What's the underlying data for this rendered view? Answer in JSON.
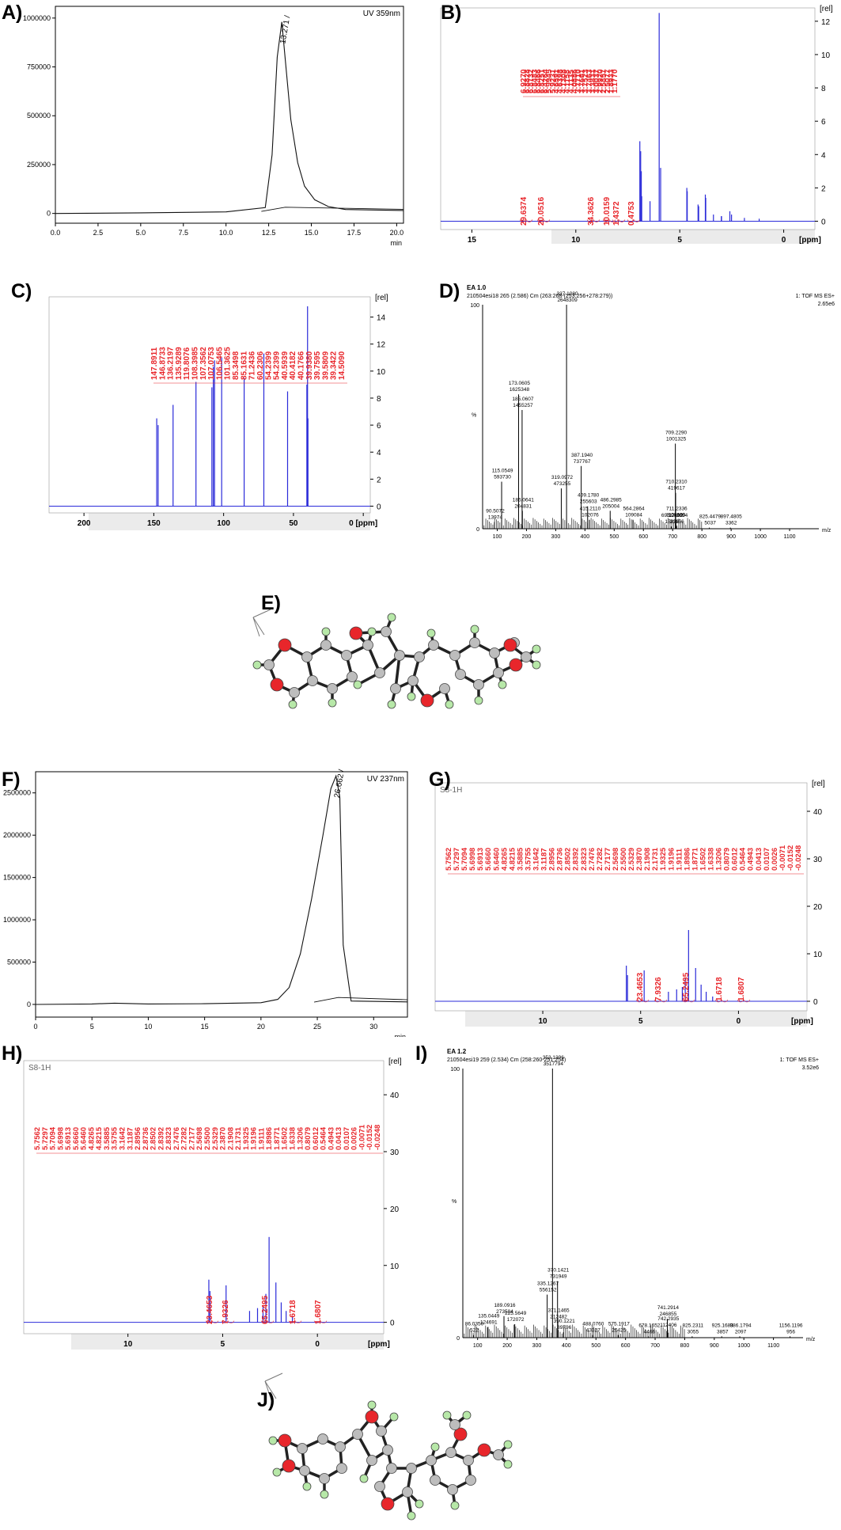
{
  "chart_data": [
    {
      "panel": "A)",
      "type": "line",
      "legend_text": "UV 359nm",
      "xlabel": "min",
      "xticks": [
        "0.0",
        "2.5",
        "5.0",
        "7.5",
        "10.0",
        "12.5",
        "15.0",
        "17.5",
        "20.0"
      ],
      "yticks": [
        "0",
        "250000",
        "500000",
        "750000",
        "1000000"
      ],
      "xlim": [
        0,
        20.4
      ],
      "ylim": [
        -50000,
        1060000
      ],
      "peak_label": "13.271",
      "series": [
        {
          "x": [
            0,
            5,
            10,
            12.3,
            12.7,
            13.0,
            13.27,
            13.5,
            13.8,
            14.2,
            14.6,
            15.2,
            16.0,
            17.0,
            20.4
          ],
          "y": [
            0,
            3000,
            8000,
            30000,
            300000,
            800000,
            980000,
            760000,
            480000,
            260000,
            140000,
            70000,
            35000,
            20000,
            15000
          ]
        }
      ]
    },
    {
      "panel": "B)",
      "type": "line",
      "xlabel": "[ppm]",
      "ylabel": "[rel]",
      "xticks": [
        "15",
        "10",
        "5",
        "0"
      ],
      "yticks": [
        "0",
        "2",
        "4",
        "6",
        "8",
        "10",
        "12"
      ],
      "xlim": [
        16.5,
        -1.5
      ],
      "ylim": [
        -0.5,
        12.8
      ],
      "peak_labels": [
        "6.9270",
        "6.8828",
        "6.8732",
        "6.8483",
        "6.8466",
        "6.8251",
        "6.4264",
        "5.9945",
        "5.9231",
        "4.6591",
        "4.6398",
        "4.1308",
        "4.1158",
        "4.1135",
        "4.0886",
        "3.7710",
        "3.7661",
        "3.7523",
        "3.7463",
        "3.3831",
        "3.0037",
        "2.9920",
        "2.5857",
        "2.5077",
        "1.8933",
        "1.1770"
      ],
      "integrals": [
        "29.6374",
        "20.0516",
        "34.3626",
        "10.0159",
        "1.4372",
        "0.4753"
      ],
      "series": [
        {
          "x": [
            6.92,
            6.88,
            6.85,
            6.83,
            6.43,
            5.99,
            5.92,
            4.66,
            4.64,
            4.12,
            4.09,
            3.77,
            3.75,
            3.38,
            3.0,
            2.99,
            2.59,
            2.51,
            1.89,
            1.18
          ],
          "y": [
            4.8,
            4.2,
            3.0,
            1.5,
            1.2,
            12.5,
            3.2,
            2.0,
            1.8,
            1.0,
            0.9,
            1.6,
            1.4,
            0.4,
            0.3,
            0.3,
            0.6,
            0.4,
            0.2,
            0.15
          ]
        }
      ]
    },
    {
      "panel": "C)",
      "type": "line",
      "xlabel": "[ppm]",
      "ylabel": "[rel]",
      "xticks": [
        "200",
        "150",
        "100",
        "50",
        "0 [ppm]"
      ],
      "yticks": [
        "0",
        "2",
        "4",
        "6",
        "8",
        "10",
        "12",
        "14"
      ],
      "xlim": [
        225,
        -5
      ],
      "ylim": [
        -0.5,
        15.5
      ],
      "peak_labels": [
        "147.8911",
        "146.8733",
        "136.2197",
        "135.9289",
        "119.8076",
        "108.3985",
        "107.3562",
        "107.0753",
        "106.5465",
        "101.3625",
        "85.3498",
        "85.1631",
        "71.2436",
        "60.2306",
        "54.2399",
        "54.2399",
        "40.5939",
        "40.4182",
        "40.1766",
        "39.9380",
        "39.7595",
        "39.5809",
        "39.3422",
        "14.5090"
      ],
      "series": [
        {
          "x": [
            147.9,
            146.9,
            136.2,
            119.8,
            108.4,
            107.4,
            106.5,
            101.4,
            85.3,
            71.2,
            54.2,
            40.4,
            39.9,
            39.6
          ],
          "y": [
            6.5,
            6.0,
            7.5,
            9.2,
            8.8,
            10.3,
            10.8,
            11.0,
            9.5,
            11.3,
            8.5,
            9.0,
            14.8,
            6.5
          ]
        }
      ]
    },
    {
      "panel": "D)",
      "type": "bar",
      "header_line1": "EA 1.0",
      "header_line2": "210504esi18 265 (2.586) Cm (263:268-(253:256+278:279))",
      "header_right1": "1: TOF MS ES+",
      "header_right2": "2.65e6",
      "ylabel": "%",
      "xlabel": "m/z",
      "xticks": [
        "100",
        "200",
        "300",
        "400",
        "500",
        "600",
        "700",
        "800",
        "900",
        "1000",
        "1100"
      ],
      "yticks": [
        "0",
        "100"
      ],
      "xlim": [
        50,
        1200
      ],
      "ylim": [
        0,
        100
      ],
      "peaks": [
        {
          "mz": 90.5072,
          "inten": 3,
          "label1": "90.5072",
          "label2": "13974"
        },
        {
          "mz": 115.0549,
          "inten": 21,
          "label1": "115.0549",
          "label2": "593730"
        },
        {
          "mz": 173.0605,
          "inten": 60,
          "label1": "173.0605",
          "label2": "1625348"
        },
        {
          "mz": 185.0607,
          "inten": 53,
          "label1": "185.0607",
          "label2": "1455257"
        },
        {
          "mz": 186.0641,
          "inten": 8,
          "label1": "186.0641",
          "label2": "204831"
        },
        {
          "mz": 319.0972,
          "inten": 18,
          "label1": "319.0972",
          "label2": "473255"
        },
        {
          "mz": 337.108,
          "inten": 100,
          "label1": "337.1080",
          "label2": "2648309"
        },
        {
          "mz": 387.194,
          "inten": 28,
          "label1": "387.1940",
          "label2": "737767"
        },
        {
          "mz": 409.178,
          "inten": 10,
          "label1": "409.1780",
          "label2": "255603"
        },
        {
          "mz": 415.211,
          "inten": 4,
          "label1": "415.2110",
          "label2": "102076"
        },
        {
          "mz": 486.2985,
          "inten": 8,
          "label1": "486.2985",
          "label2": "205004"
        },
        {
          "mz": 564.2864,
          "inten": 4,
          "label1": "564.2864",
          "label2": "109084"
        },
        {
          "mz": 695.249,
          "inten": 1,
          "label1": "695.2490",
          "label2": "15958"
        },
        {
          "mz": 709.229,
          "inten": 38,
          "label1": "709.2290",
          "label2": "1001325"
        },
        {
          "mz": 710.231,
          "inten": 16,
          "label1": "710.2310",
          "label2": "419617"
        },
        {
          "mz": 711.2336,
          "inten": 4,
          "label1": "711.2336",
          "label2": "109609"
        },
        {
          "mz": 712.2354,
          "inten": 1,
          "label1": "712.2354",
          "label2": "21656"
        },
        {
          "mz": 825.4479,
          "inten": 0.5,
          "label1": "825.4479",
          "label2": "5037"
        },
        {
          "mz": 897.4805,
          "inten": 0.5,
          "label1": "897.4805",
          "label2": "3362"
        }
      ]
    },
    {
      "panel": "F)",
      "type": "line",
      "legend_text": "UV 237nm",
      "xlabel": "min",
      "xticks": [
        "0",
        "5",
        "10",
        "15",
        "20",
        "25",
        "30"
      ],
      "yticks": [
        "0",
        "500000",
        "1000000",
        "1500000",
        "2000000",
        "2500000"
      ],
      "xlim": [
        0,
        33
      ],
      "ylim": [
        -150000,
        2750000
      ],
      "peak_label": "26.662",
      "series": [
        {
          "x": [
            0,
            5,
            7,
            10,
            15,
            20,
            21.5,
            22.5,
            23.5,
            24.5,
            25.5,
            26.2,
            26.66,
            27.0,
            27.3,
            28,
            33
          ],
          "y": [
            0,
            5000,
            15000,
            5000,
            8000,
            20000,
            60000,
            200000,
            600000,
            1250000,
            2000000,
            2550000,
            2700000,
            2450000,
            700000,
            40000,
            30000
          ]
        }
      ]
    },
    {
      "panel": "G)",
      "type": "line",
      "title_text": "S8-1H",
      "xlabel": "[ppm]",
      "ylabel": "[rel]",
      "xticks": [
        "10",
        "5",
        "0"
      ],
      "yticks": [
        "0",
        "10",
        "20",
        "30",
        "40"
      ],
      "xlim": [
        15.5,
        -3.5
      ],
      "ylim": [
        -2,
        46
      ],
      "peak_labels": [
        "5.7562",
        "5.7297",
        "5.7094",
        "5.6998",
        "5.6913",
        "5.6660",
        "5.6460",
        "4.8265",
        "4.8215",
        "3.5885",
        "3.5755",
        "3.1642",
        "3.1187",
        "2.8956",
        "2.8736",
        "2.8502",
        "2.8392",
        "2.8323",
        "2.7476",
        "2.7282",
        "2.7177",
        "2.5698",
        "2.5500",
        "2.5329",
        "2.3870",
        "2.1908",
        "2.1731",
        "1.9325",
        "1.9196",
        "1.9111",
        "1.8986",
        "1.8771",
        "1.6502",
        "1.6338",
        "1.3206",
        "0.8079",
        "0.6012",
        "0.5464",
        "0.4943",
        "0.0413",
        "0.0107",
        "0.0026",
        "-0.0071",
        "-0.0152",
        "-0.0248"
      ],
      "integrals": [
        "23.4653",
        "7.9326",
        "65.2495",
        "1.6718",
        "1.6807"
      ],
      "series": [
        {
          "x": [
            5.73,
            5.67,
            4.82,
            3.58,
            3.16,
            2.87,
            2.72,
            2.55,
            2.19,
            1.91,
            1.65,
            1.32
          ],
          "y": [
            7.5,
            5.5,
            6.5,
            2.0,
            2.5,
            3.0,
            5.0,
            15.0,
            7.0,
            3.5,
            2.0,
            1.0
          ]
        }
      ]
    },
    {
      "panel": "H)",
      "type": "line",
      "title_text": "S8-1H",
      "xlabel": "[ppm]",
      "ylabel": "[rel]",
      "xticks": [
        "10",
        "5",
        "0"
      ],
      "yticks": [
        "0",
        "10",
        "20",
        "30",
        "40"
      ],
      "xlim": [
        15.5,
        -3.5
      ],
      "ylim": [
        -2,
        46
      ],
      "peak_labels": [
        "5.7562",
        "5.7297",
        "5.7094",
        "5.6998",
        "5.6913",
        "5.6660",
        "5.6460",
        "4.8265",
        "4.8215",
        "3.5885",
        "3.5755",
        "3.1642",
        "3.1187",
        "2.8956",
        "2.8736",
        "2.8502",
        "2.8392",
        "2.8323",
        "2.7476",
        "2.7282",
        "2.7177",
        "2.5698",
        "2.5500",
        "2.5329",
        "2.3870",
        "2.1908",
        "2.1731",
        "1.9325",
        "1.9196",
        "1.9111",
        "1.8986",
        "1.8771",
        "1.6502",
        "1.6338",
        "1.3206",
        "0.8079",
        "0.6012",
        "0.5464",
        "0.4943",
        "0.0413",
        "0.0107",
        "0.0026",
        "-0.0071",
        "-0.0152",
        "-0.0248"
      ],
      "integrals": [
        "23.4653",
        "7.9326",
        "65.2495",
        "1.6718",
        "1.6807"
      ],
      "series": [
        {
          "x": [
            5.73,
            5.67,
            4.82,
            3.58,
            3.16,
            2.87,
            2.72,
            2.55,
            2.19,
            1.91,
            1.65,
            1.32
          ],
          "y": [
            7.5,
            5.5,
            6.5,
            2.0,
            2.5,
            3.0,
            5.0,
            15.0,
            7.0,
            3.5,
            2.0,
            1.0
          ]
        }
      ]
    },
    {
      "panel": "I)",
      "type": "bar",
      "header_line1": "EA 1.2",
      "header_line2": "210504esi19 259 (2.534) Cm (258:260-251:254)",
      "header_right1": "1: TOF MS ES+",
      "header_right2": "3.52e6",
      "ylabel": "%",
      "xlabel": "m/z",
      "xticks": [
        "100",
        "200",
        "300",
        "400",
        "500",
        "600",
        "700",
        "800",
        "900",
        "1000",
        "1100"
      ],
      "yticks": [
        "0",
        "100"
      ],
      "xlim": [
        50,
        1200
      ],
      "ylim": [
        0,
        100
      ],
      "peaks": [
        {
          "mz": 86.035,
          "inten": 1,
          "label1": "86.0350",
          "label2": "522"
        },
        {
          "mz": 135.0449,
          "inten": 4,
          "label1": "135.0449",
          "label2": "124691"
        },
        {
          "mz": 189.0916,
          "inten": 8,
          "label1": "189.0916",
          "label2": "273584"
        },
        {
          "mz": 225.5649,
          "inten": 5,
          "label1": "225.5649",
          "label2": "172072"
        },
        {
          "mz": 335.1267,
          "inten": 16,
          "label1": "335.1267",
          "label2": "556152"
        },
        {
          "mz": 353.1396,
          "inten": 100,
          "label1": "353.1396",
          "label2": "3517794"
        },
        {
          "mz": 370.1421,
          "inten": 21,
          "label1": "370.1421",
          "label2": "731949"
        },
        {
          "mz": 371.1465,
          "inten": 6,
          "label1": "371.1465",
          "label2": "212482"
        },
        {
          "mz": 390.1221,
          "inten": 2,
          "label1": "390.1221",
          "label2": "89796"
        },
        {
          "mz": 488.076,
          "inten": 1,
          "label1": "488.0760",
          "label2": "43327"
        },
        {
          "mz": 575.1917,
          "inten": 1,
          "label1": "575.1917",
          "label2": "26425"
        },
        {
          "mz": 678.1652,
          "inten": 0.5,
          "label1": "678.1652",
          "label2": "4466"
        },
        {
          "mz": 741.2914,
          "inten": 7,
          "label1": "741.2914",
          "label2": "246855"
        },
        {
          "mz": 742.2935,
          "inten": 3,
          "label1": "742.2935",
          "label2": "112406"
        },
        {
          "mz": 825.2311,
          "inten": 0.5,
          "label1": "825.2311",
          "label2": "3055"
        },
        {
          "mz": 925.1683,
          "inten": 0.5,
          "label1": "925.1683",
          "label2": "3857"
        },
        {
          "mz": 986.1794,
          "inten": 0.5,
          "label1": "986.1794",
          "label2": "2097"
        },
        {
          "mz": 1156.1196,
          "inten": 0.5,
          "label1": "1156.1196",
          "label2": "956"
        }
      ]
    }
  ],
  "molecules": {
    "e_label": "E)",
    "j_label": "J)"
  },
  "colors": {
    "nmr_trace": "#2b2bd9",
    "peak_label": "#e8262b",
    "atom_oxygen": "#e8262b",
    "atom_hydrogen": "#b7e8a8",
    "atom_carbon": "#bdbdbd"
  }
}
